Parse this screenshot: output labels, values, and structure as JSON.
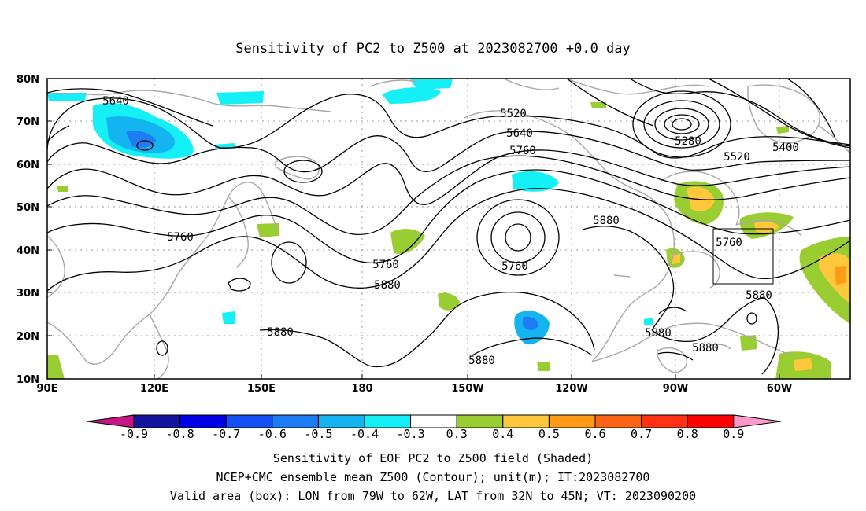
{
  "title": "Sensitivity of PC2 to Z500 at 2023082700 +0.0 day",
  "map": {
    "lon_ticks": [
      "90E",
      "120E",
      "150E",
      "180",
      "150W",
      "120W",
      "90W",
      "60W"
    ],
    "lat_ticks": [
      "80N",
      "70N",
      "60N",
      "50N",
      "40N",
      "30N",
      "20N",
      "10N"
    ],
    "contour_labels": [
      {
        "text": "5640",
        "id": "c5640-pacific"
      },
      {
        "text": "5520",
        "id": "c5520-npac"
      },
      {
        "text": "5640",
        "id": "c5640-npac"
      },
      {
        "text": "5760",
        "id": "c5760-npac"
      },
      {
        "text": "5280",
        "id": "c5280-low"
      },
      {
        "text": "5400",
        "id": "c5400-atl"
      },
      {
        "text": "5520",
        "id": "c5520-atl"
      },
      {
        "text": "5760",
        "id": "c5760-asia"
      },
      {
        "text": "5760",
        "id": "c5760-dateline"
      },
      {
        "text": "5880",
        "id": "c5880-dateline"
      },
      {
        "text": "5760",
        "id": "c5760-cutoff"
      },
      {
        "text": "5880",
        "id": "c5880-us"
      },
      {
        "text": "5760",
        "id": "c5760-box"
      },
      {
        "text": "5880",
        "id": "c5880-wpac"
      },
      {
        "text": "5880",
        "id": "c5880-cpac"
      },
      {
        "text": "5880",
        "id": "c5880-gulf"
      },
      {
        "text": "5880",
        "id": "c5880-carib"
      },
      {
        "text": "5880",
        "id": "c5880-atl"
      }
    ],
    "valid_box": {
      "lon_min": -79,
      "lon_max": -62,
      "lat_min": 32,
      "lat_max": 45
    }
  },
  "colorbar": {
    "labels": [
      "-0.9",
      "-0.8",
      "-0.7",
      "-0.6",
      "-0.5",
      "-0.4",
      "-0.3",
      "0.3",
      "0.4",
      "0.5",
      "0.6",
      "0.7",
      "0.8",
      "0.9"
    ],
    "colors": {
      "left_arrow": "#c71585",
      "right_arrow": "#ff99cc",
      "bins": [
        "#1414a0",
        "#0000e6",
        "#1450f5",
        "#1e7df5",
        "#14b4f0",
        "#14f0f5",
        "#ffffff",
        "#9acd32",
        "#ffc83c",
        "#ff9b14",
        "#ff6414",
        "#ff3214",
        "#ff0000"
      ]
    }
  },
  "captions": {
    "line1": "Sensitivity of EOF PC2 to Z500 field (Shaded)",
    "line2": "NCEP+CMC ensemble mean Z500 (Contour); unit(m); IT:2023082700",
    "line3": "Valid area (box): LON from 79W to 62W, LAT from 32N to 45N; VT: 2023090200"
  }
}
